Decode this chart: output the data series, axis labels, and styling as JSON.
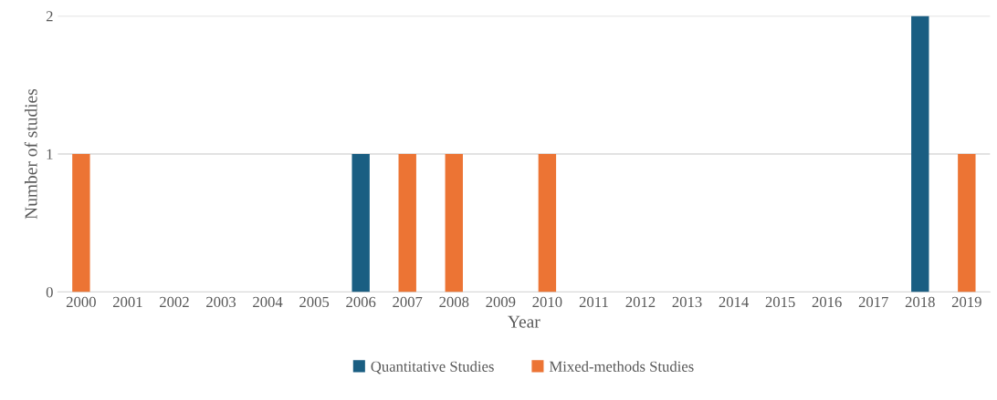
{
  "chart_data": {
    "type": "bar",
    "xlabel": "Year",
    "ylabel": "Number of studies",
    "categories": [
      "2000",
      "2001",
      "2002",
      "2003",
      "2004",
      "2005",
      "2006",
      "2007",
      "2008",
      "2009",
      "2010",
      "2011",
      "2012",
      "2013",
      "2014",
      "2015",
      "2016",
      "2017",
      "2018",
      "2019"
    ],
    "series": [
      {
        "name": "Quantitative Studies",
        "color": "#1a5e82",
        "values": [
          0,
          0,
          0,
          0,
          0,
          0,
          1,
          0,
          0,
          0,
          0,
          0,
          0,
          0,
          0,
          0,
          0,
          0,
          2,
          0
        ]
      },
      {
        "name": "Mixed-methods Studies",
        "color": "#ec7434",
        "values": [
          1,
          0,
          0,
          0,
          0,
          0,
          0,
          1,
          1,
          0,
          1,
          0,
          0,
          0,
          0,
          0,
          0,
          0,
          0,
          1
        ]
      }
    ],
    "ylim": [
      0,
      2
    ],
    "yticks": [
      0,
      1,
      2
    ],
    "grid": "y",
    "legend": "bottom"
  }
}
